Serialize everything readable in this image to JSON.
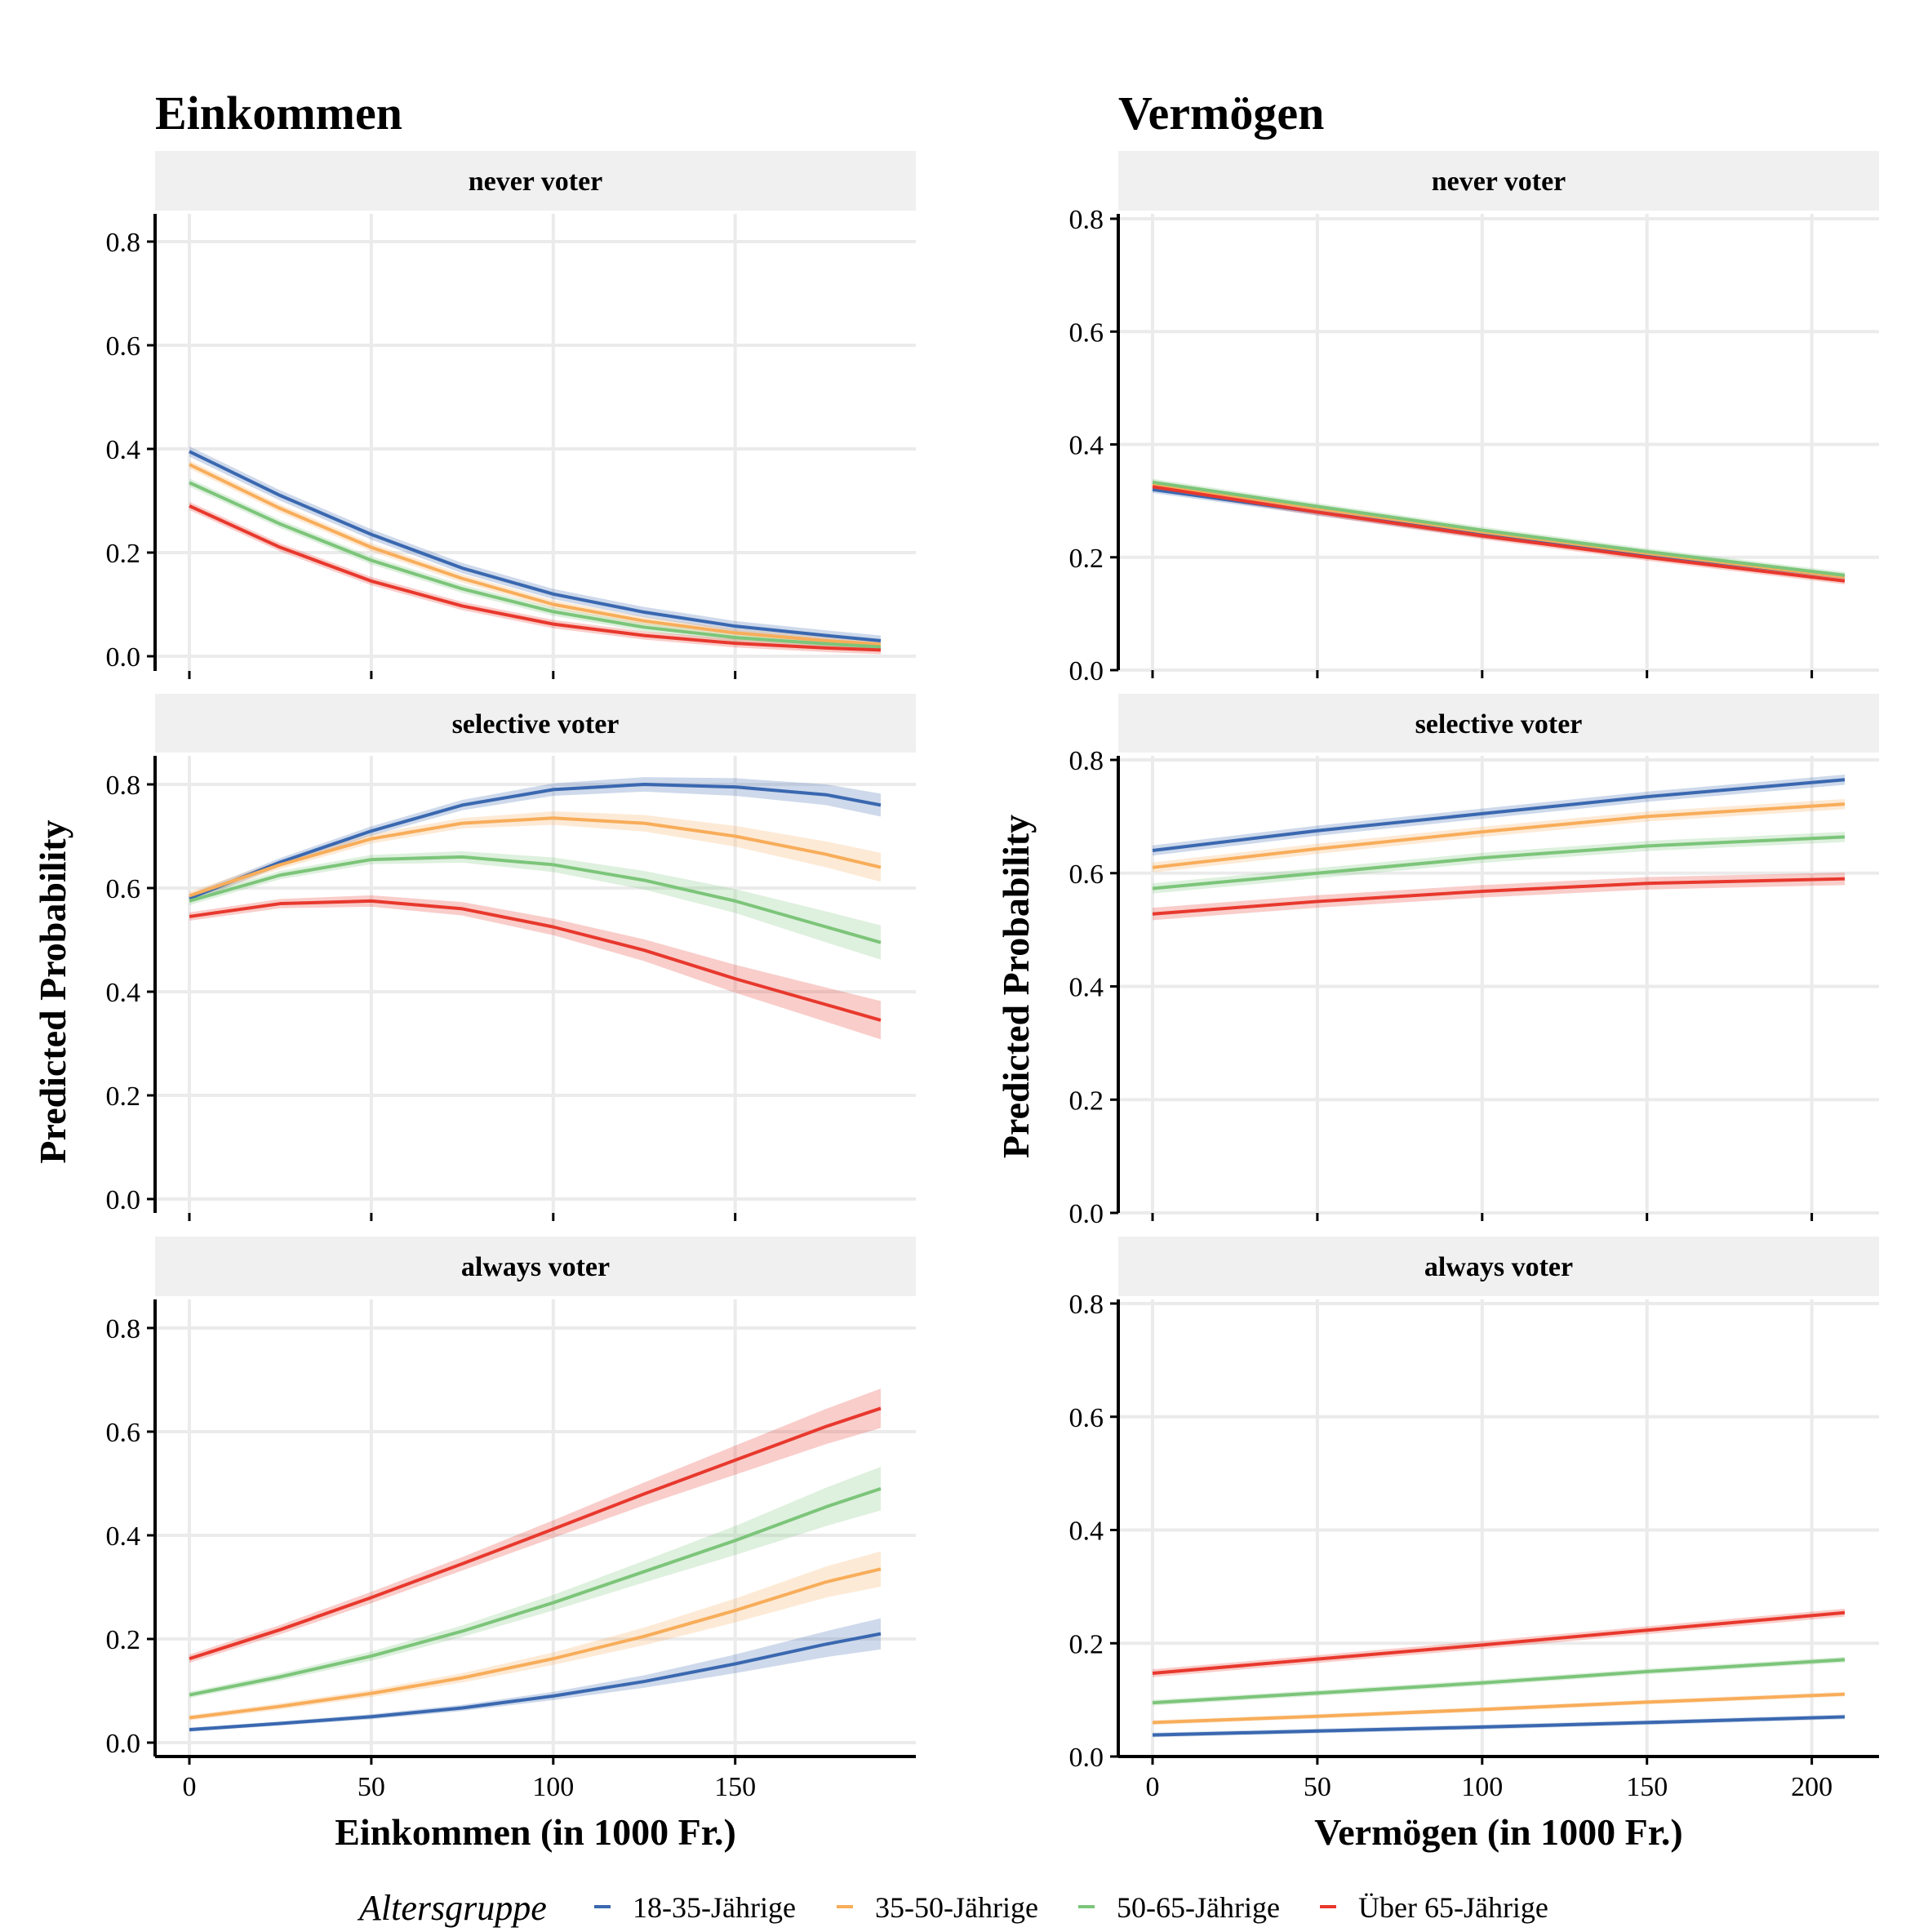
{
  "colors": {
    "18-35-Jährige": "#3a68b0",
    "35-50-Jährige": "#f8ad5a",
    "50-65-Jährige": "#7cc57a",
    "Über 65-Jährige": "#e8382d",
    "strip_bg": "#f0f0f0",
    "grid": "#ebebeb"
  },
  "legend": {
    "title": "Altersgruppe",
    "entries": [
      "18-35-Jährige",
      "35-50-Jährige",
      "50-65-Jährige",
      "Über 65-Jährige"
    ],
    "position": "bottom"
  },
  "chart_data": [
    {
      "type": "line",
      "title": "Einkommen",
      "facet": "never voter",
      "xlabel": "",
      "ylabel": "",
      "xlim": [
        0,
        190
      ],
      "ylim": [
        0,
        0.8
      ],
      "xticks": [
        "0",
        "50",
        "100",
        "150"
      ],
      "yticks": [
        "0.0",
        "0.2",
        "0.4",
        "0.6",
        "0.8"
      ],
      "grid": true,
      "x": [
        0,
        25,
        50,
        75,
        100,
        125,
        150,
        175,
        190
      ],
      "series": [
        {
          "name": "18-35-Jährige",
          "values": [
            0.395,
            0.31,
            0.235,
            0.17,
            0.12,
            0.085,
            0.058,
            0.04,
            0.03
          ],
          "band": 0.01
        },
        {
          "name": "35-50-Jährige",
          "values": [
            0.37,
            0.285,
            0.21,
            0.15,
            0.1,
            0.068,
            0.045,
            0.03,
            0.023
          ],
          "band": 0.008
        },
        {
          "name": "50-65-Jährige",
          "values": [
            0.335,
            0.255,
            0.185,
            0.13,
            0.086,
            0.056,
            0.036,
            0.024,
            0.018
          ],
          "band": 0.008
        },
        {
          "name": "Über 65-Jährige",
          "values": [
            0.29,
            0.21,
            0.145,
            0.097,
            0.062,
            0.04,
            0.025,
            0.016,
            0.012
          ],
          "band": 0.008
        }
      ]
    },
    {
      "type": "line",
      "title": "Vermögen",
      "facet": "never voter",
      "xlabel": "",
      "ylabel": "",
      "xlim": [
        0,
        210
      ],
      "ylim": [
        0,
        0.8
      ],
      "xticks": [
        "0",
        "50",
        "100",
        "150",
        "200"
      ],
      "yticks": [
        "0.0",
        "0.2",
        "0.4",
        "0.6",
        "0.8"
      ],
      "grid": true,
      "x": [
        0,
        50,
        100,
        150,
        210
      ],
      "series": [
        {
          "name": "18-35-Jährige",
          "values": [
            0.32,
            0.28,
            0.24,
            0.205,
            0.165
          ],
          "band": 0.006
        },
        {
          "name": "35-50-Jährige",
          "values": [
            0.33,
            0.287,
            0.245,
            0.207,
            0.165
          ],
          "band": 0.006
        },
        {
          "name": "50-65-Jährige",
          "values": [
            0.333,
            0.29,
            0.248,
            0.21,
            0.168
          ],
          "band": 0.006
        },
        {
          "name": "Über 65-Jährige",
          "values": [
            0.325,
            0.28,
            0.238,
            0.2,
            0.158
          ],
          "band": 0.006
        }
      ]
    },
    {
      "type": "line",
      "title": "",
      "facet": "selective voter",
      "xlabel": "",
      "ylabel": "Predicted Probability",
      "xlim": [
        0,
        190
      ],
      "ylim": [
        0,
        0.8
      ],
      "xticks": [
        "0",
        "50",
        "100",
        "150"
      ],
      "yticks": [
        "0.0",
        "0.2",
        "0.4",
        "0.6",
        "0.8"
      ],
      "grid": true,
      "x": [
        0,
        25,
        50,
        75,
        100,
        125,
        150,
        175,
        190
      ],
      "series": [
        {
          "name": "18-35-Jährige",
          "values": [
            0.58,
            0.65,
            0.71,
            0.76,
            0.79,
            0.8,
            0.795,
            0.78,
            0.76
          ],
          "band": [
            0.008,
            0.008,
            0.009,
            0.01,
            0.012,
            0.014,
            0.017,
            0.02,
            0.022
          ]
        },
        {
          "name": "35-50-Jährige",
          "values": [
            0.585,
            0.645,
            0.695,
            0.725,
            0.735,
            0.725,
            0.7,
            0.665,
            0.64
          ],
          "band": [
            0.008,
            0.008,
            0.009,
            0.01,
            0.013,
            0.016,
            0.02,
            0.025,
            0.028
          ]
        },
        {
          "name": "50-65-Jährige",
          "values": [
            0.575,
            0.625,
            0.655,
            0.66,
            0.645,
            0.615,
            0.575,
            0.525,
            0.495
          ],
          "band": [
            0.008,
            0.008,
            0.009,
            0.011,
            0.014,
            0.018,
            0.023,
            0.03,
            0.033
          ]
        },
        {
          "name": "Über 65-Jährige",
          "values": [
            0.545,
            0.57,
            0.575,
            0.56,
            0.525,
            0.48,
            0.425,
            0.375,
            0.345
          ],
          "band": [
            0.008,
            0.009,
            0.011,
            0.013,
            0.016,
            0.021,
            0.027,
            0.033,
            0.037
          ]
        }
      ]
    },
    {
      "type": "line",
      "title": "",
      "facet": "selective voter",
      "xlabel": "",
      "ylabel": "Predicted Probability",
      "xlim": [
        0,
        210
      ],
      "ylim": [
        0,
        0.8
      ],
      "xticks": [
        "0",
        "50",
        "100",
        "150",
        "200"
      ],
      "yticks": [
        "0.0",
        "0.2",
        "0.4",
        "0.6",
        "0.8"
      ],
      "grid": true,
      "x": [
        0,
        50,
        100,
        150,
        210
      ],
      "series": [
        {
          "name": "18-35-Jährige",
          "values": [
            0.64,
            0.675,
            0.705,
            0.735,
            0.765
          ],
          "band": 0.009
        },
        {
          "name": "35-50-Jährige",
          "values": [
            0.61,
            0.643,
            0.673,
            0.7,
            0.722
          ],
          "band": 0.009
        },
        {
          "name": "50-65-Jährige",
          "values": [
            0.573,
            0.6,
            0.627,
            0.648,
            0.664
          ],
          "band": 0.009
        },
        {
          "name": "Über 65-Jährige",
          "values": [
            0.528,
            0.55,
            0.568,
            0.582,
            0.59
          ],
          "band": 0.011
        }
      ]
    },
    {
      "type": "line",
      "title": "",
      "facet": "always voter",
      "xlabel": "Einkommen (in 1000 Fr.)",
      "ylabel": "",
      "xlim": [
        0,
        190
      ],
      "ylim": [
        0,
        0.8
      ],
      "xticks": [
        "0",
        "50",
        "100",
        "150"
      ],
      "yticks": [
        "0.0",
        "0.2",
        "0.4",
        "0.6",
        "0.8"
      ],
      "grid": true,
      "x": [
        0,
        25,
        50,
        75,
        100,
        125,
        150,
        175,
        190
      ],
      "series": [
        {
          "name": "18-35-Jährige",
          "values": [
            0.025,
            0.037,
            0.05,
            0.067,
            0.09,
            0.118,
            0.152,
            0.19,
            0.21
          ],
          "band": [
            0.004,
            0.004,
            0.005,
            0.006,
            0.008,
            0.012,
            0.018,
            0.025,
            0.03
          ]
        },
        {
          "name": "35-50-Jährige",
          "values": [
            0.048,
            0.07,
            0.095,
            0.125,
            0.162,
            0.205,
            0.255,
            0.31,
            0.335
          ],
          "band": [
            0.005,
            0.006,
            0.007,
            0.009,
            0.012,
            0.017,
            0.023,
            0.03,
            0.034
          ]
        },
        {
          "name": "50-65-Jährige",
          "values": [
            0.092,
            0.127,
            0.167,
            0.215,
            0.27,
            0.33,
            0.39,
            0.455,
            0.49
          ],
          "band": [
            0.006,
            0.007,
            0.009,
            0.011,
            0.015,
            0.021,
            0.028,
            0.037,
            0.042
          ]
        },
        {
          "name": "Über 65-Jährige",
          "values": [
            0.162,
            0.218,
            0.28,
            0.345,
            0.412,
            0.48,
            0.545,
            0.61,
            0.645
          ],
          "band": [
            0.008,
            0.009,
            0.011,
            0.013,
            0.017,
            0.022,
            0.028,
            0.034,
            0.038
          ]
        }
      ]
    },
    {
      "type": "line",
      "title": "",
      "facet": "always voter",
      "xlabel": "Vermögen (in 1000 Fr.)",
      "ylabel": "",
      "xlim": [
        0,
        210
      ],
      "ylim": [
        0,
        0.8
      ],
      "xticks": [
        "0",
        "50",
        "100",
        "150",
        "200"
      ],
      "yticks": [
        "0.0",
        "0.2",
        "0.4",
        "0.6",
        "0.8"
      ],
      "grid": true,
      "x": [
        0,
        50,
        100,
        150,
        210
      ],
      "series": [
        {
          "name": "18-35-Jährige",
          "values": [
            0.038,
            0.045,
            0.052,
            0.06,
            0.07
          ],
          "band": 0.004
        },
        {
          "name": "35-50-Jährige",
          "values": [
            0.06,
            0.071,
            0.083,
            0.096,
            0.11
          ],
          "band": 0.004
        },
        {
          "name": "50-65-Jährige",
          "values": [
            0.095,
            0.112,
            0.13,
            0.15,
            0.171
          ],
          "band": 0.005
        },
        {
          "name": "Über 65-Jährige",
          "values": [
            0.147,
            0.172,
            0.197,
            0.223,
            0.254
          ],
          "band": 0.007
        }
      ]
    }
  ]
}
